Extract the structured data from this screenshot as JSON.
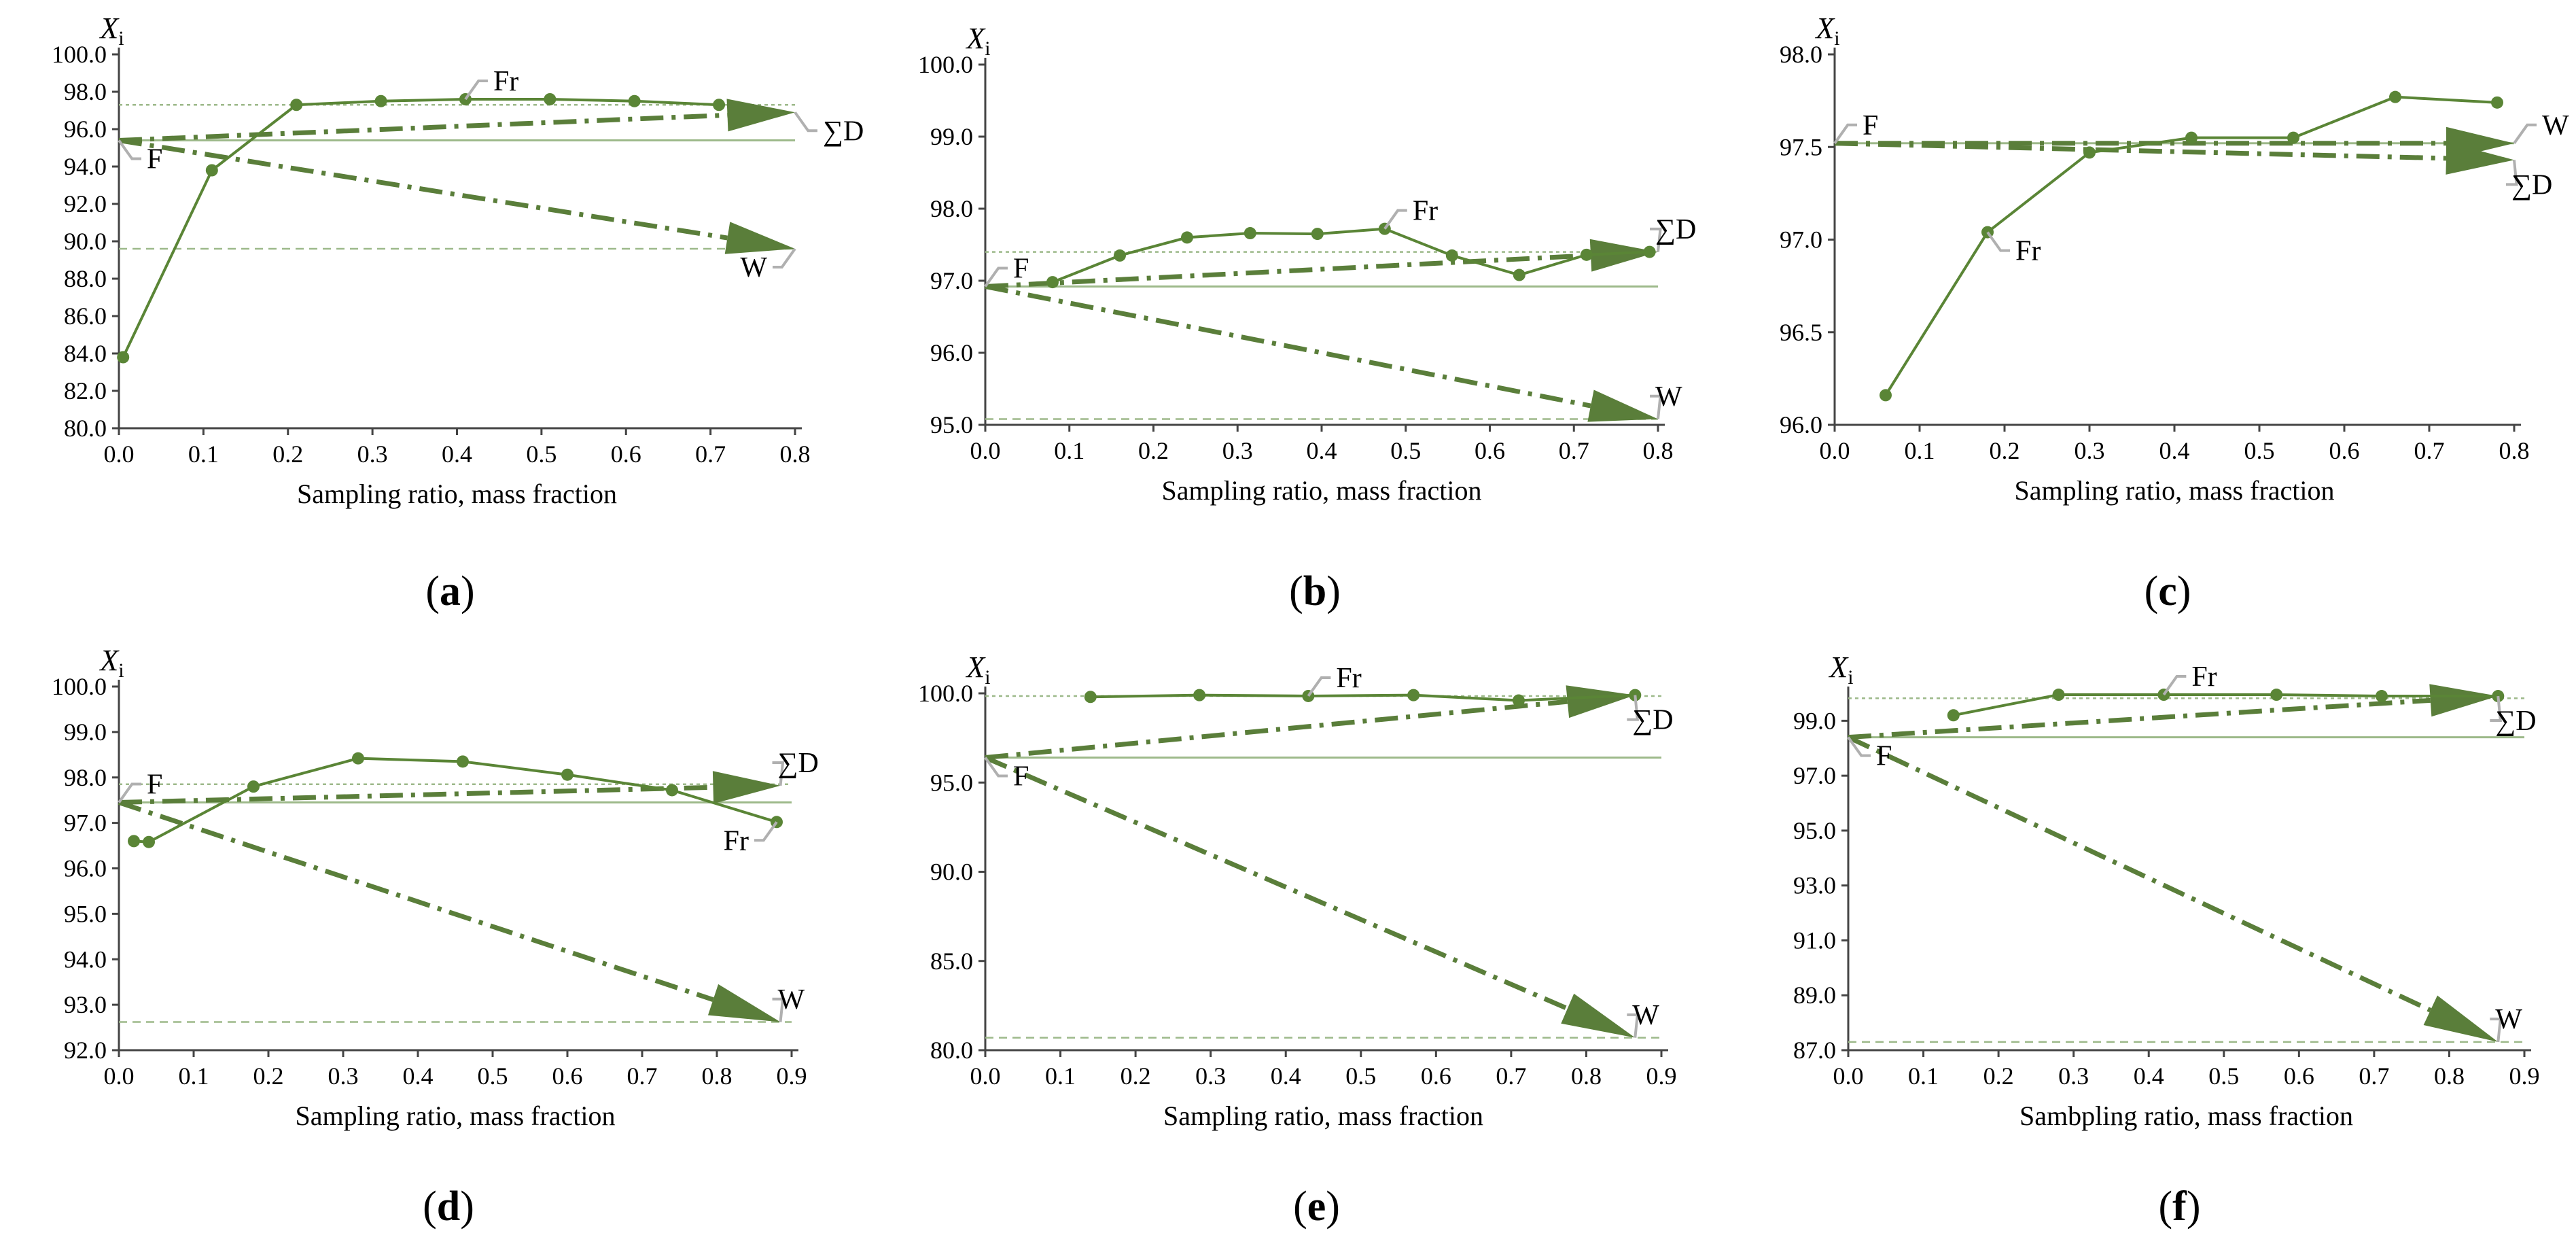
{
  "colors": {
    "main": "#5A8536",
    "light": "#9DB98A",
    "arrow": "#5A7E3A",
    "ghost": "#B0B0B0",
    "axis": "#444444"
  },
  "chart_data": [
    {
      "type": "line",
      "panel_label": "(a)",
      "title": "",
      "y_axis_symbol": "X",
      "y_axis_subscript": "i",
      "xlabel": "Sampling ratio, mass fraction",
      "xlim": [
        0,
        0.8
      ],
      "x_ticks": [
        0.0,
        0.1,
        0.2,
        0.3,
        0.4,
        0.5,
        0.6,
        0.7,
        0.8
      ],
      "ylim": [
        80,
        100
      ],
      "y_ticks": [
        80,
        82,
        84,
        86,
        88,
        90,
        92,
        94,
        96,
        98,
        100
      ],
      "decimals": 1,
      "series": [
        {
          "name": "Fr",
          "x": [
            0.005,
            0.11,
            0.21,
            0.31,
            0.41,
            0.51,
            0.61,
            0.71
          ],
          "y": [
            83.8,
            93.8,
            97.3,
            97.5,
            97.6,
            97.6,
            97.5,
            97.3
          ]
        }
      ],
      "feed_level": 95.4,
      "fr_mean_level": 97.3,
      "d_level": 96.9,
      "w_level": 89.6,
      "arrow_end_x": 0.8,
      "arrow_head_span_x": 0.08,
      "labels": [
        {
          "text": "Fr",
          "anchor": "fr_point",
          "point_index": 4,
          "dir": "ne"
        },
        {
          "text": "∑D",
          "anchor": "d_end",
          "dir": "se"
        },
        {
          "text": "W",
          "anchor": "w_end",
          "dir": "sw"
        },
        {
          "text": "F",
          "anchor": "feed",
          "dir": "se"
        }
      ]
    },
    {
      "type": "line",
      "panel_label": "(b)",
      "title": "",
      "y_axis_symbol": "X",
      "y_axis_subscript": "i",
      "xlabel": "Sampling ratio, mass fraction",
      "xlim": [
        0,
        0.8
      ],
      "x_ticks": [
        0.0,
        0.1,
        0.2,
        0.3,
        0.4,
        0.5,
        0.6,
        0.7,
        0.8
      ],
      "ylim": [
        95,
        100
      ],
      "y_ticks": [
        95,
        96,
        97,
        98,
        99,
        100
      ],
      "decimals": 1,
      "series": [
        {
          "name": "Fr",
          "x": [
            0.08,
            0.16,
            0.24,
            0.315,
            0.395,
            0.475,
            0.555,
            0.635,
            0.715,
            0.79
          ],
          "y": [
            96.98,
            97.35,
            97.6,
            97.66,
            97.65,
            97.72,
            97.35,
            97.08,
            97.36,
            97.4
          ]
        }
      ],
      "feed_level": 96.92,
      "fr_mean_level": 97.4,
      "d_level": 97.4,
      "w_level": 95.08,
      "arrow_end_x": 0.8,
      "arrow_head_span_x": 0.08,
      "labels": [
        {
          "text": "Fr",
          "anchor": "fr_point",
          "point_index": 5,
          "dir": "ne"
        },
        {
          "text": "∑D",
          "anchor": "d_end",
          "dir": "n"
        },
        {
          "text": "W",
          "anchor": "w_end",
          "dir": "n"
        },
        {
          "text": "F",
          "anchor": "feed",
          "dir": "ne"
        }
      ]
    },
    {
      "type": "line",
      "panel_label": "(c)",
      "title": "",
      "y_axis_symbol": "X",
      "y_axis_subscript": "i",
      "xlabel": "Sampling ratio, mass fraction",
      "xlim": [
        0,
        0.8
      ],
      "x_ticks": [
        0.0,
        0.1,
        0.2,
        0.3,
        0.4,
        0.5,
        0.6,
        0.7,
        0.8
      ],
      "ylim": [
        96,
        98
      ],
      "y_ticks": [
        96.0,
        96.5,
        97.0,
        97.5,
        98.0
      ],
      "decimals": 1,
      "series": [
        {
          "name": "Fr",
          "x": [
            0.06,
            0.18,
            0.3,
            0.42,
            0.54,
            0.66,
            0.78
          ],
          "y": [
            96.16,
            97.04,
            97.47,
            97.55,
            97.55,
            97.77,
            97.74
          ]
        }
      ],
      "feed_level": 97.52,
      "fr_mean_level": 97.52,
      "d_level": 97.43,
      "w_level": 97.52,
      "arrow_end_x": 0.8,
      "arrow_head_span_x": 0.08,
      "labels": [
        {
          "text": "Fr",
          "anchor": "fr_point",
          "point_index": 1,
          "dir": "se"
        },
        {
          "text": "∑D",
          "anchor": "d_end",
          "dir": "s"
        },
        {
          "text": "W",
          "anchor": "w_end",
          "dir": "ne"
        },
        {
          "text": "F",
          "anchor": "feed",
          "dir": "ne"
        }
      ]
    },
    {
      "type": "line",
      "panel_label": "(d)",
      "title": "",
      "y_axis_symbol": "X",
      "y_axis_subscript": "i",
      "xlabel": "Sampling ratio, mass fraction",
      "xlim": [
        0,
        0.9
      ],
      "x_ticks": [
        0.0,
        0.1,
        0.2,
        0.3,
        0.4,
        0.5,
        0.6,
        0.7,
        0.8,
        0.9
      ],
      "ylim": [
        92,
        100
      ],
      "y_ticks": [
        92,
        93,
        94,
        95,
        96,
        97,
        98,
        99,
        100
      ],
      "decimals": 1,
      "series": [
        {
          "name": "Fr",
          "x": [
            0.02,
            0.04,
            0.18,
            0.32,
            0.46,
            0.6,
            0.74,
            0.88
          ],
          "y": [
            96.6,
            96.58,
            97.8,
            98.42,
            98.35,
            98.06,
            97.72,
            97.02
          ]
        }
      ],
      "feed_level": 97.45,
      "fr_mean_level": 97.85,
      "d_level": 97.82,
      "w_level": 92.62,
      "arrow_end_x": 0.885,
      "arrow_head_span_x": 0.09,
      "labels": [
        {
          "text": "Fr",
          "anchor": "fr_point",
          "point_index": 7,
          "dir": "sw"
        },
        {
          "text": "∑D",
          "anchor": "d_end",
          "dir": "n"
        },
        {
          "text": "W",
          "anchor": "w_end",
          "dir": "n"
        },
        {
          "text": "F",
          "anchor": "feed",
          "dir": "ne"
        }
      ]
    },
    {
      "type": "line",
      "panel_label": "(e)",
      "title": "",
      "y_axis_symbol": "X",
      "y_axis_subscript": "i",
      "xlabel": "Sampling ratio, mass fraction",
      "xlim": [
        0,
        0.9
      ],
      "x_ticks": [
        0.0,
        0.1,
        0.2,
        0.3,
        0.4,
        0.5,
        0.6,
        0.7,
        0.8,
        0.9
      ],
      "ylim": [
        80,
        100
      ],
      "y_ticks": [
        80,
        85,
        90,
        95,
        100
      ],
      "decimals": 1,
      "series": [
        {
          "name": "Fr",
          "x": [
            0.14,
            0.285,
            0.43,
            0.57,
            0.71,
            0.865
          ],
          "y": [
            99.8,
            99.9,
            99.85,
            99.9,
            99.6,
            99.9
          ]
        }
      ],
      "feed_level": 96.4,
      "fr_mean_level": 99.85,
      "d_level": 99.9,
      "w_level": 80.7,
      "arrow_end_x": 0.865,
      "arrow_head_span_x": 0.09,
      "labels": [
        {
          "text": "Fr",
          "anchor": "fr_point",
          "point_index": 2,
          "dir": "ne"
        },
        {
          "text": "∑D",
          "anchor": "d_end",
          "dir": "s"
        },
        {
          "text": "W",
          "anchor": "w_end",
          "dir": "n"
        },
        {
          "text": "F",
          "anchor": "feed",
          "dir": "se"
        }
      ]
    },
    {
      "type": "line",
      "panel_label": "(f)",
      "title": "",
      "y_axis_symbol": "X",
      "y_axis_subscript": "i",
      "xlabel": "Sambpling ratio, mass fraction",
      "xlim": [
        0,
        0.9
      ],
      "x_ticks": [
        0.0,
        0.1,
        0.2,
        0.3,
        0.4,
        0.5,
        0.6,
        0.7,
        0.8,
        0.9
      ],
      "ylim": [
        87,
        100
      ],
      "y_ticks": [
        87,
        89,
        91,
        93,
        95,
        97,
        99
      ],
      "decimals": 1,
      "series": [
        {
          "name": "Fr",
          "x": [
            0.14,
            0.28,
            0.42,
            0.57,
            0.71,
            0.865
          ],
          "y": [
            99.2,
            99.95,
            99.95,
            99.95,
            99.9,
            99.9
          ]
        }
      ],
      "feed_level": 98.4,
      "fr_mean_level": 99.82,
      "d_level": 99.9,
      "w_level": 87.3,
      "arrow_end_x": 0.865,
      "arrow_head_span_x": 0.09,
      "labels": [
        {
          "text": "Fr",
          "anchor": "fr_point",
          "point_index": 2,
          "dir": "ne"
        },
        {
          "text": "∑D",
          "anchor": "d_end",
          "dir": "s"
        },
        {
          "text": "W",
          "anchor": "w_end",
          "dir": "n"
        },
        {
          "text": "F",
          "anchor": "feed",
          "dir": "se"
        }
      ]
    }
  ]
}
